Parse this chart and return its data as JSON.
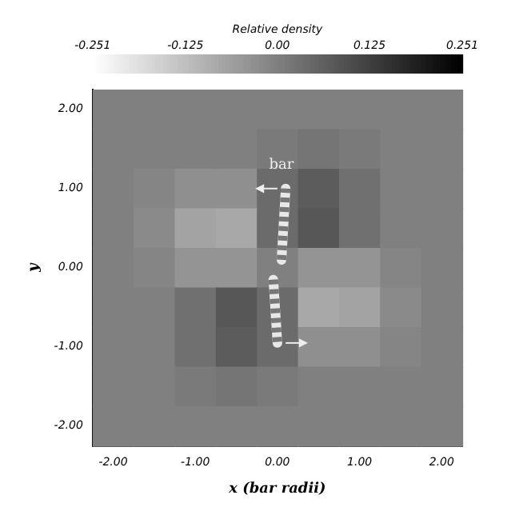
{
  "chart_data": {
    "type": "heatmap",
    "xlabel": "x (bar radii)",
    "ylabel": "y",
    "clabel": "Relative density",
    "annotations": [
      "bar"
    ],
    "categories": [
      "-2.00",
      null,
      "-1.00",
      null,
      "0.00",
      null,
      "1.00",
      null,
      "2.00"
    ],
    "y_categories": [
      "2.00",
      null,
      "1.00",
      null,
      "0.00",
      null,
      "-1.00",
      null,
      "-2.00"
    ],
    "clim": [
      -0.251,
      0.251
    ],
    "cticks": [
      -0.251,
      -0.125,
      {
        "value": 0,
        "label": "0.00"
      },
      0.125,
      0.251
    ],
    "cells": [
      [
        0,
        0,
        0,
        0,
        0,
        0,
        0,
        0,
        0
      ],
      [
        0,
        0,
        0,
        0,
        0.01,
        0.02,
        0.01,
        0,
        0
      ],
      [
        0,
        -0.01,
        -0.03,
        -0.03,
        0.04,
        0.07,
        0.03,
        0,
        0
      ],
      [
        0,
        -0.02,
        -0.07,
        -0.08,
        0.04,
        0.08,
        0.03,
        0,
        0
      ],
      [
        0,
        -0.01,
        -0.04,
        -0.04,
        0,
        -0.04,
        -0.04,
        -0.01,
        0
      ],
      [
        0,
        0,
        0.03,
        0.08,
        0.04,
        -0.08,
        -0.07,
        -0.02,
        0
      ],
      [
        0,
        0,
        0.03,
        0.07,
        0.04,
        -0.03,
        -0.03,
        -0.01,
        0
      ],
      [
        0,
        0,
        0.01,
        0.02,
        0.01,
        0,
        0,
        0,
        0
      ],
      [
        0,
        0,
        0,
        0,
        0,
        0,
        0,
        0,
        0
      ]
    ]
  }
}
